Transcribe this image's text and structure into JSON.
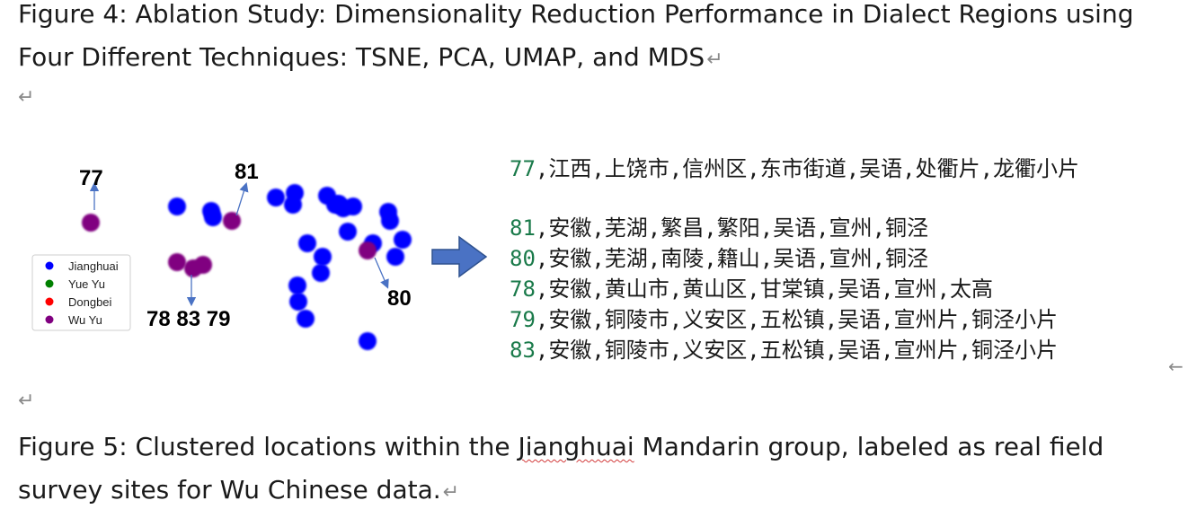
{
  "figure4_caption": "Figure 4: Ablation Study: Dimensionality Reduction Performance in Dialect Regions using Four Different Techniques: TSNE, PCA, UMAP, and MDS",
  "paragraph_mark": "↵",
  "chart_data": {
    "type": "scatter",
    "legend": {
      "placement": "left",
      "entries": [
        {
          "name": "Jianghuai",
          "color": "#0000ff"
        },
        {
          "name": "Yue Yu",
          "color": "#008000"
        },
        {
          "name": "Dongbei",
          "color": "#ff0000"
        },
        {
          "name": "Wu Yu",
          "color": "#800080"
        }
      ]
    },
    "series": [
      {
        "name": "Jianghuai",
        "color": "#0000ff",
        "points": [
          [
            167,
            70
          ],
          [
            205,
            75
          ],
          [
            207,
            82
          ],
          [
            277,
            60
          ],
          [
            298,
            55
          ],
          [
            296,
            68
          ],
          [
            334,
            58
          ],
          [
            343,
            68
          ],
          [
            352,
            72
          ],
          [
            363,
            70
          ],
          [
            347,
            67
          ],
          [
            402,
            76
          ],
          [
            404,
            86
          ],
          [
            357,
            98
          ],
          [
            312,
            111
          ],
          [
            385,
            111
          ],
          [
            418,
            107
          ],
          [
            329,
            126
          ],
          [
            410,
            126
          ],
          [
            327,
            144
          ],
          [
            301,
            158
          ],
          [
            302,
            176
          ],
          [
            310,
            195
          ],
          [
            379,
            220
          ]
        ]
      },
      {
        "name": "Wu Yu",
        "color": "#800080",
        "points": [
          [
            71,
            88
          ],
          [
            228,
            86
          ],
          [
            167,
            132
          ],
          [
            185,
            139
          ],
          [
            196,
            135
          ],
          [
            379,
            119
          ]
        ]
      }
    ],
    "annotations": [
      {
        "label": "77",
        "point": [
          71,
          88
        ]
      },
      {
        "label": "81",
        "point": [
          228,
          86
        ]
      },
      {
        "label": "80",
        "point": [
          379,
          119
        ]
      },
      {
        "label": "78 83 79",
        "point": [
          185,
          139
        ]
      }
    ]
  },
  "records": [
    {
      "id": "77",
      "text": ",江西,上饶市,信州区,东市街道,吴语,处衢片,龙衢小片"
    },
    {
      "id": "81",
      "text": ",安徽,芜湖,繁昌,繁阳,吴语,宣州,铜泾"
    },
    {
      "id": "80",
      "text": ",安徽,芜湖,南陵,籍山,吴语,宣州,铜泾"
    },
    {
      "id": "78",
      "text": ",安徽,黄山市,黄山区,甘棠镇,吴语,宣州,太高"
    },
    {
      "id": "79",
      "text": ",安徽,铜陵市,义安区,五松镇,吴语,宣州片,铜泾小片"
    },
    {
      "id": "83",
      "text": ",安徽,铜陵市,义安区,五松镇,吴语,宣州片,铜泾小片"
    }
  ],
  "left_arrow_mark": "←",
  "figure5_caption": {
    "part1": "Figure 5: Clustered locations within the ",
    "highlight": "Jianghuai",
    "part2": " Mandarin group, labeled as real field survey sites for Wu Chinese data."
  }
}
